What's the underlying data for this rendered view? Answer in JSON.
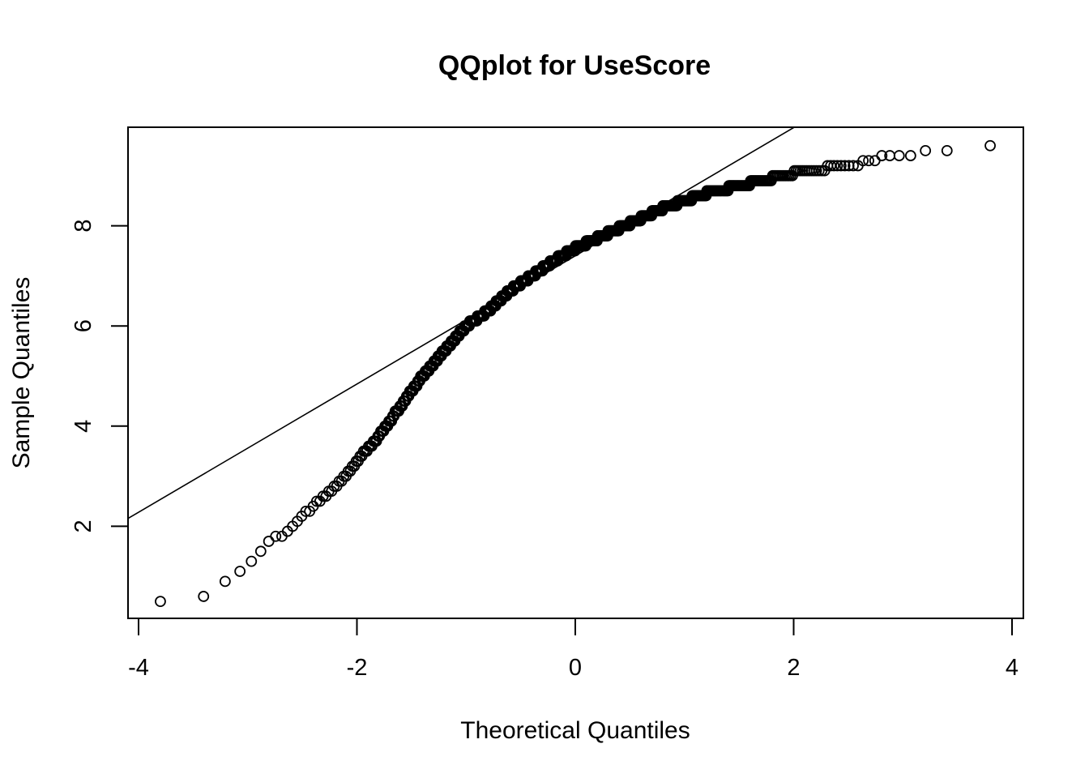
{
  "chart_data": {
    "type": "scatter",
    "title": "QQplot for UseScore",
    "xlabel": "Theoretical Quantiles",
    "ylabel": "Sample Quantiles",
    "xlim": [
      -4.05,
      4.1
    ],
    "ylim": [
      0.2,
      10.0
    ],
    "x_ticks": [
      "-4",
      "-2",
      "0",
      "2",
      "4"
    ],
    "x_tick_values": [
      -4,
      -2,
      0,
      2,
      4
    ],
    "y_ticks": [
      "2",
      "4",
      "6",
      "8"
    ],
    "y_tick_values": [
      2,
      4,
      6,
      8
    ],
    "grid": false,
    "legend": "none",
    "reference_line": {
      "intercept": 7.4,
      "slope": 1.28
    },
    "anchors": {
      "x": [
        -3.8,
        -3.52,
        -3.38,
        -3.3,
        -3.2,
        -3.1,
        -2.98,
        -2.88,
        -2.8,
        -2.7,
        -2.6,
        -2.5,
        -2.4,
        -2.3,
        -2.2,
        -2.1,
        -2.0,
        -1.8,
        -1.6,
        -1.4,
        -1.2,
        -1.0,
        -0.8,
        -0.6,
        -0.4,
        -0.2,
        0.0,
        0.2,
        0.4,
        0.6,
        0.8,
        1.0,
        1.2,
        1.5,
        1.8,
        2.0,
        2.3,
        2.6,
        2.8,
        3.0,
        3.1,
        3.2,
        3.3,
        3.52,
        3.8
      ],
      "y": [
        0.5,
        0.5,
        0.6,
        0.7,
        0.9,
        1.1,
        1.3,
        1.5,
        1.7,
        1.8,
        2.0,
        2.2,
        2.4,
        2.6,
        2.8,
        3.0,
        3.3,
        3.8,
        4.4,
        5.0,
        5.5,
        6.0,
        6.3,
        6.7,
        7.0,
        7.3,
        7.55,
        7.75,
        7.95,
        8.15,
        8.35,
        8.5,
        8.65,
        8.8,
        8.95,
        9.05,
        9.15,
        9.25,
        9.35,
        9.4,
        9.4,
        9.5,
        9.5,
        9.6,
        9.6
      ]
    },
    "point_count": 700,
    "y_step": 0.1
  }
}
